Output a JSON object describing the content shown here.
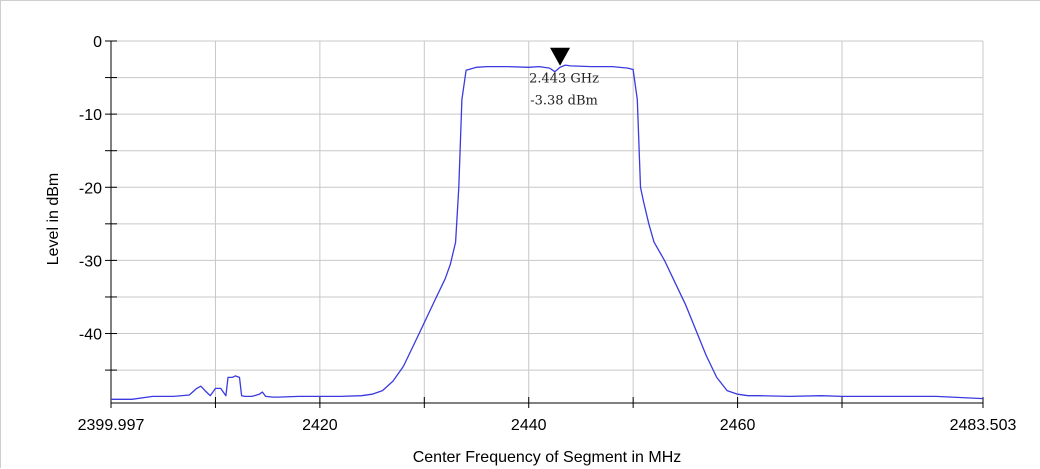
{
  "chart_data": {
    "type": "line",
    "title": "",
    "xlabel": "Center Frequency of Segment in MHz",
    "ylabel": "Level in dBm",
    "xlim": [
      2399.997,
      2483.503
    ],
    "ylim": [
      -49.5,
      0
    ],
    "x_ticks": [
      {
        "value": 2399.997,
        "label": "2399.997"
      },
      {
        "value": 2420,
        "label": "2420"
      },
      {
        "value": 2440,
        "label": "2440"
      },
      {
        "value": 2460,
        "label": "2460"
      },
      {
        "value": 2483.503,
        "label": "2483.503"
      }
    ],
    "x_grid": [
      2399.997,
      2410,
      2420,
      2430,
      2440,
      2450,
      2460,
      2470,
      2483.503
    ],
    "y_ticks": [
      {
        "value": 0,
        "label": "0"
      },
      {
        "value": -10,
        "label": "-10"
      },
      {
        "value": -20,
        "label": "-20"
      },
      {
        "value": -30,
        "label": "-30"
      },
      {
        "value": -40,
        "label": "-40"
      }
    ],
    "y_grid": [
      0,
      -5,
      -10,
      -15,
      -20,
      -25,
      -30,
      -35,
      -40,
      -45
    ],
    "grid": true,
    "series": [
      {
        "color": "#3a3ae0",
        "x": [
          2400.0,
          2402.0,
          2404.0,
          2406.0,
          2407.5,
          2408.2,
          2408.6,
          2409.0,
          2409.5,
          2410.0,
          2410.5,
          2411.0,
          2411.2,
          2411.6,
          2411.9,
          2412.3,
          2412.5,
          2412.8,
          2413.5,
          2414.2,
          2414.5,
          2414.8,
          2415.5,
          2416.0,
          2418.0,
          2420.0,
          2422.0,
          2424.0,
          2425.0,
          2426.0,
          2427.0,
          2428.0,
          2429.0,
          2430.0,
          2431.0,
          2432.0,
          2432.5,
          2433.0,
          2433.3,
          2433.6,
          2434.0,
          2435.0,
          2436.0,
          2438.0,
          2440.0,
          2441.0,
          2442.0,
          2442.5,
          2443.0,
          2443.5,
          2444.0,
          2446.0,
          2448.0,
          2449.5,
          2450.0,
          2450.4,
          2450.7,
          2451.0,
          2451.5,
          2452.0,
          2453.0,
          2454.0,
          2455.0,
          2456.0,
          2457.0,
          2458.0,
          2459.0,
          2460.0,
          2461.0,
          2462.0,
          2465.0,
          2468.0,
          2470.0,
          2475.0,
          2479.0,
          2482.0,
          2483.5
        ],
        "y": [
          -49.0,
          -49.0,
          -48.6,
          -48.6,
          -48.4,
          -47.5,
          -47.2,
          -47.8,
          -48.5,
          -47.5,
          -47.5,
          -48.5,
          -46.0,
          -46.0,
          -45.8,
          -46.0,
          -48.5,
          -48.6,
          -48.6,
          -48.3,
          -48.0,
          -48.6,
          -48.7,
          -48.7,
          -48.6,
          -48.6,
          -48.6,
          -48.5,
          -48.3,
          -47.8,
          -46.5,
          -44.5,
          -41.5,
          -38.5,
          -35.5,
          -32.5,
          -30.5,
          -27.5,
          -20.0,
          -8.0,
          -4.0,
          -3.6,
          -3.5,
          -3.5,
          -3.6,
          -3.5,
          -3.7,
          -4.2,
          -3.6,
          -3.3,
          -3.4,
          -3.5,
          -3.5,
          -3.7,
          -3.9,
          -8.0,
          -20.0,
          -22.0,
          -25.0,
          -27.5,
          -30.0,
          -33.0,
          -36.0,
          -39.5,
          -43.0,
          -46.0,
          -47.8,
          -48.3,
          -48.5,
          -48.5,
          -48.6,
          -48.5,
          -48.6,
          -48.6,
          -48.6,
          -48.8,
          -48.9
        ]
      }
    ],
    "marker": {
      "x": 2443,
      "y": -3.38,
      "label_freq": "2.443 GHz",
      "label_level": "-3.38 dBm"
    }
  }
}
